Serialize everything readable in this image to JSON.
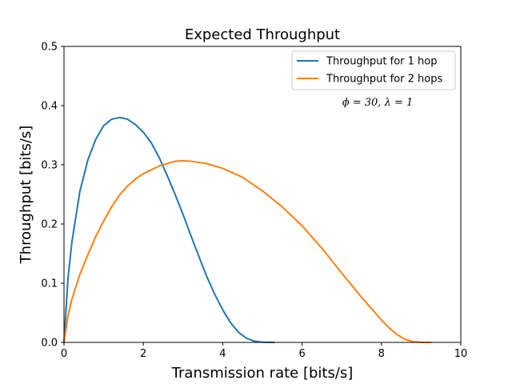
{
  "chart_data": {
    "type": "line",
    "title": "Expected Throughput",
    "xlabel": "Transmission rate [bits/s]",
    "ylabel": "Throughput [bits/s]",
    "xlim": [
      0,
      10
    ],
    "ylim": [
      0,
      0.5
    ],
    "xticks": [
      "0",
      "2",
      "4",
      "6",
      "8",
      "10"
    ],
    "yticks": [
      "0.0",
      "0.1",
      "0.2",
      "0.3",
      "0.4",
      "0.5"
    ],
    "grid": false,
    "legend_position": "top-right",
    "annotation": "ϕ = 30,  λ = 1",
    "series": [
      {
        "name": "Throughput for 1 hop",
        "color": "#1f77b4",
        "x": [
          0,
          0.1,
          0.2,
          0.4,
          0.6,
          0.8,
          1.0,
          1.2,
          1.4,
          1.6,
          1.8,
          2.0,
          2.2,
          2.4,
          2.6,
          2.8,
          3.0,
          3.2,
          3.4,
          3.6,
          3.8,
          4.0,
          4.2,
          4.4,
          4.6,
          4.8,
          5.0,
          5.3
        ],
        "y": [
          0,
          0.108,
          0.17,
          0.255,
          0.308,
          0.343,
          0.366,
          0.377,
          0.38,
          0.377,
          0.368,
          0.355,
          0.337,
          0.312,
          0.282,
          0.25,
          0.216,
          0.18,
          0.145,
          0.111,
          0.081,
          0.055,
          0.033,
          0.017,
          0.007,
          0.002,
          0.0003,
          0
        ]
      },
      {
        "name": "Throughput for 2 hops",
        "color": "#ff7f0e",
        "x": [
          0,
          0.1,
          0.2,
          0.4,
          0.6,
          0.8,
          1.0,
          1.2,
          1.4,
          1.6,
          1.8,
          2.0,
          2.4,
          2.8,
          3.0,
          3.2,
          3.6,
          4.0,
          4.5,
          5.0,
          5.5,
          6.0,
          6.5,
          7.0,
          7.5,
          8.0,
          8.2,
          8.4,
          8.6,
          8.8,
          9.0,
          9.25
        ],
        "y": [
          0,
          0.045,
          0.073,
          0.115,
          0.148,
          0.179,
          0.205,
          0.229,
          0.249,
          0.264,
          0.276,
          0.285,
          0.298,
          0.306,
          0.307,
          0.306,
          0.302,
          0.294,
          0.279,
          0.256,
          0.229,
          0.197,
          0.159,
          0.117,
          0.076,
          0.038,
          0.024,
          0.013,
          0.005,
          0.001,
          0.0002,
          0
        ]
      }
    ]
  }
}
